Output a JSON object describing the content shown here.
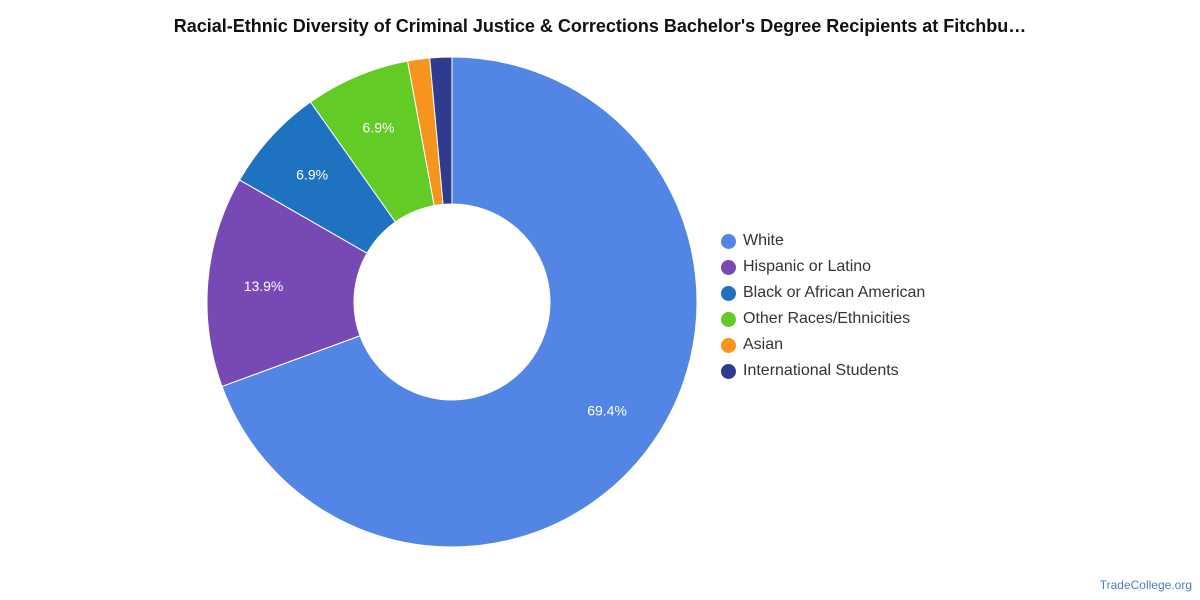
{
  "chart_data": {
    "type": "pie",
    "title": "Racial-Ethnic Diversity of Criminal Justice & Corrections Bachelor's Degree Recipients at Fitchbu…",
    "donut": true,
    "legend_position": "right",
    "slices": [
      {
        "label": "White",
        "value": 69.4,
        "display": "69.4%",
        "color": "#5386e4"
      },
      {
        "label": "Hispanic or Latino",
        "value": 13.9,
        "display": "13.9%",
        "color": "#7649b4"
      },
      {
        "label": "Black or African American",
        "value": 6.9,
        "display": "6.9%",
        "color": "#1f72bf"
      },
      {
        "label": "Other Races/Ethnicities",
        "value": 6.9,
        "display": "6.9%",
        "color": "#63cb25"
      },
      {
        "label": "Asian",
        "value": 1.45,
        "display": "",
        "color": "#f7941d"
      },
      {
        "label": "International Students",
        "value": 1.45,
        "display": "",
        "color": "#2e3b8f"
      }
    ]
  },
  "footer": {
    "watermark": "TradeCollege.org"
  }
}
